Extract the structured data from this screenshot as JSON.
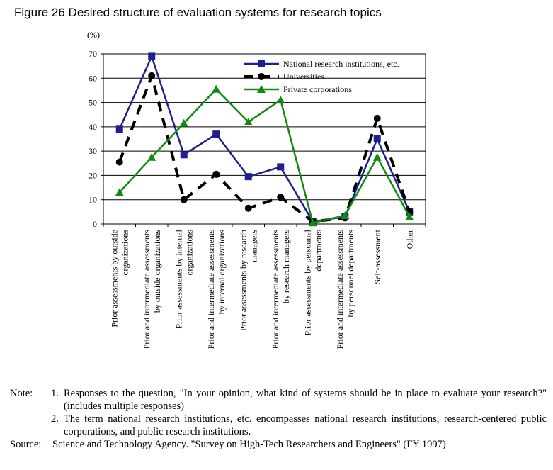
{
  "figure_title": "Figure 26 Desired structure of evaluation systems for research topics",
  "notes": {
    "label": "Note:",
    "items": [
      {
        "num": "1.",
        "text": "Responses to the question, \"In your opinion, what kind of systems should be in place to evaluate your research?\" (includes multiple responses)"
      },
      {
        "num": "2.",
        "text": "The term national research institutions, etc. encompasses national research institutions, research-centered public corporations, and public research institutions."
      }
    ]
  },
  "source": {
    "label": "Source:",
    "text": "Science and Technology Agency. \"Survey on High-Tech Researchers and Engineers\" (FY 1997)"
  },
  "chart_data": {
    "type": "line",
    "unit_label": "(%)",
    "ylim": [
      0,
      70
    ],
    "yticks": [
      "0",
      "10",
      "20",
      "30",
      "40",
      "50",
      "60",
      "70"
    ],
    "grid": true,
    "legend_position": "top-right",
    "categories": [
      [
        "Prior assessments by outside",
        "organizations"
      ],
      [
        "Prior and intermediate assessments",
        "by outside organizations"
      ],
      [
        "Prior assessments by internal",
        "organizations"
      ],
      [
        "Prior and intermediate assessments",
        "by internal organizations"
      ],
      [
        "Prior assessments by research",
        "managers"
      ],
      [
        "Prior and intermediate assessments",
        "by research managers"
      ],
      [
        "Prior assessments by personnel",
        "departments"
      ],
      [
        "Prior and intermediate assessments",
        "by personnel departments"
      ],
      [
        "Self-assessment"
      ],
      [
        "Other"
      ]
    ],
    "series": [
      {
        "name": "National research institutions, etc.",
        "color": "#1f1f8f",
        "marker": "square",
        "dash": "solid",
        "values": [
          39,
          69,
          28.5,
          37,
          19.5,
          23.5,
          1,
          3,
          35,
          5
        ]
      },
      {
        "name": "Universities",
        "color": "#000000",
        "marker": "circle",
        "dash": "dashed",
        "values": [
          25.5,
          61,
          10,
          20.5,
          6.5,
          11,
          1,
          2.5,
          43.5,
          5
        ]
      },
      {
        "name": "Private corporations",
        "color": "#128a12",
        "marker": "triangle",
        "dash": "solid",
        "values": [
          13,
          27.5,
          41.5,
          55.5,
          42,
          51,
          0.5,
          3.5,
          27.5,
          3
        ]
      }
    ]
  }
}
